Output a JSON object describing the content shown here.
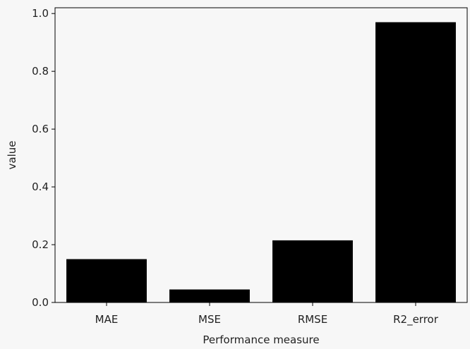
{
  "chart_data": {
    "type": "bar",
    "title": "",
    "xlabel": "Performance measure",
    "ylabel": "value",
    "categories": [
      "MAE",
      "MSE",
      "RMSE",
      "R2_error"
    ],
    "values": [
      0.15,
      0.045,
      0.215,
      0.97
    ],
    "ylim": [
      0,
      1.02
    ],
    "yticks": [
      0.0,
      0.2,
      0.4,
      0.6,
      0.8,
      1.0
    ],
    "ytick_labels": [
      "0.0",
      "0.2",
      "0.4",
      "0.6",
      "0.8",
      "1.0"
    ],
    "grid": false,
    "legend": "none",
    "colors": {
      "bar": "#000000",
      "axes_face": "#f7f7f7",
      "axes_edge": "#000000"
    }
  }
}
